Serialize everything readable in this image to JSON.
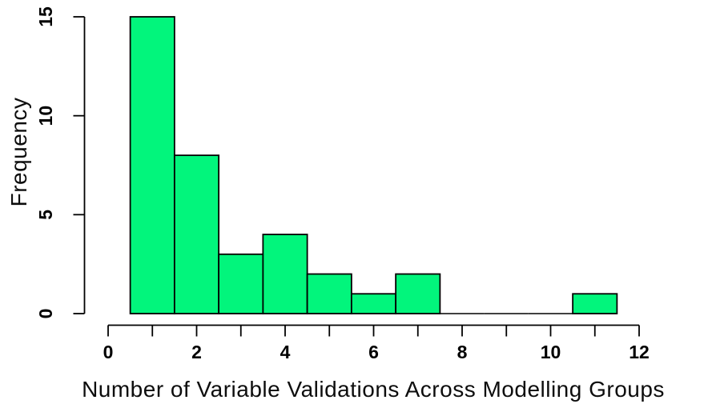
{
  "chart_data": {
    "type": "bar",
    "subtype": "histogram",
    "title": "",
    "xlabel": "Number of Variable Validations Across Modelling Groups",
    "ylabel": "Frequency",
    "bins": {
      "start": 0.5,
      "width": 1,
      "counts": [
        15,
        8,
        3,
        4,
        2,
        1,
        2,
        0,
        0,
        0,
        1
      ]
    },
    "bin_edges": [
      0.5,
      1.5,
      2.5,
      3.5,
      4.5,
      5.5,
      6.5,
      7.5,
      8.5,
      9.5,
      10.5,
      11.5
    ],
    "xlim": [
      0,
      12
    ],
    "ylim": [
      0,
      15
    ],
    "x_ticks": [
      0,
      1,
      2,
      3,
      4,
      5,
      6,
      7,
      8,
      9,
      10,
      11,
      12
    ],
    "x_labeled_ticks": [
      0,
      2,
      4,
      6,
      8,
      10,
      12
    ],
    "y_ticks": [
      0,
      5,
      10,
      15
    ],
    "grid": "off",
    "legend": "none",
    "bar_fill": "#02F57C",
    "bar_stroke": "#000000",
    "axis_color": "#000000"
  }
}
